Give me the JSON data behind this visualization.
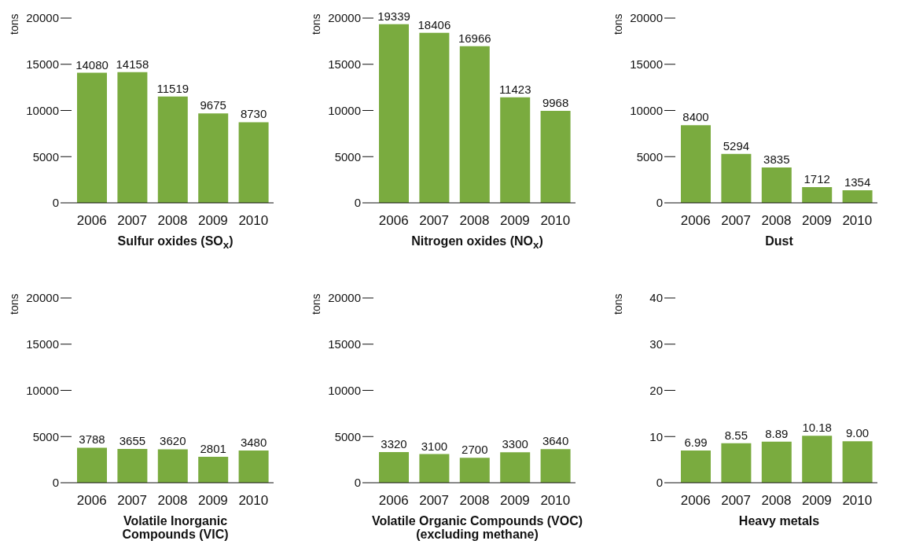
{
  "chart_data": [
    {
      "type": "bar",
      "title": "Sulfur oxides (SO$_{x}$)",
      "ylabel": "tons",
      "categories": [
        "2006",
        "2007",
        "2008",
        "2009",
        "2010"
      ],
      "values": [
        14080,
        14158,
        11519,
        9675,
        8730
      ],
      "color": "#7aab3f",
      "ylim": [
        0,
        20000
      ],
      "yticks": [
        0,
        5000,
        10000,
        15000,
        20000
      ],
      "data_labels": true
    },
    {
      "type": "bar",
      "title": "Nitrogen oxides (NO$_{x}$)",
      "ylabel": "tons",
      "categories": [
        "2006",
        "2007",
        "2008",
        "2009",
        "2010"
      ],
      "values": [
        19339,
        18406,
        16966,
        11423,
        9968
      ],
      "color": "#7aab3f",
      "ylim": [
        0,
        20000
      ],
      "yticks": [
        0,
        5000,
        10000,
        15000,
        20000
      ],
      "data_labels": true
    },
    {
      "type": "bar",
      "title": "Dust",
      "ylabel": "tons",
      "categories": [
        "2006",
        "2007",
        "2008",
        "2009",
        "2010"
      ],
      "values": [
        8400,
        5294,
        3835,
        1712,
        1354
      ],
      "color": "#7aab3f",
      "ylim": [
        0,
        20000
      ],
      "yticks": [
        0,
        5000,
        10000,
        15000,
        20000
      ],
      "data_labels": true
    },
    {
      "type": "bar",
      "title": "Volatile Inorganic\nCompounds (VIC)",
      "ylabel": "tons",
      "categories": [
        "2006",
        "2007",
        "2008",
        "2009",
        "2010"
      ],
      "values": [
        3788,
        3655,
        3620,
        2801,
        3480
      ],
      "color": "#7aab3f",
      "ylim": [
        0,
        20000
      ],
      "yticks": [
        0,
        5000,
        10000,
        15000,
        20000
      ],
      "data_labels": true
    },
    {
      "type": "bar",
      "title": "Volatile Organic Compounds (VOC)\n(excluding methane)",
      "ylabel": "tons",
      "categories": [
        "2006",
        "2007",
        "2008",
        "2009",
        "2010"
      ],
      "values": [
        3320,
        3100,
        2700,
        3300,
        3640
      ],
      "color": "#7aab3f",
      "ylim": [
        0,
        20000
      ],
      "yticks": [
        0,
        5000,
        10000,
        15000,
        20000
      ],
      "data_labels": true
    },
    {
      "type": "bar",
      "title": "Heavy metals",
      "ylabel": "tons",
      "categories": [
        "2006",
        "2007",
        "2008",
        "2009",
        "2010"
      ],
      "values": [
        6.99,
        8.55,
        8.89,
        10.18,
        9.0
      ],
      "value_labels": [
        "6.99",
        "8.55",
        "8.89",
        "10.18",
        "9.00"
      ],
      "color": "#7aab3f",
      "ylim": [
        0,
        40
      ],
      "yticks": [
        0,
        10,
        20,
        30,
        40
      ]
    }
  ]
}
